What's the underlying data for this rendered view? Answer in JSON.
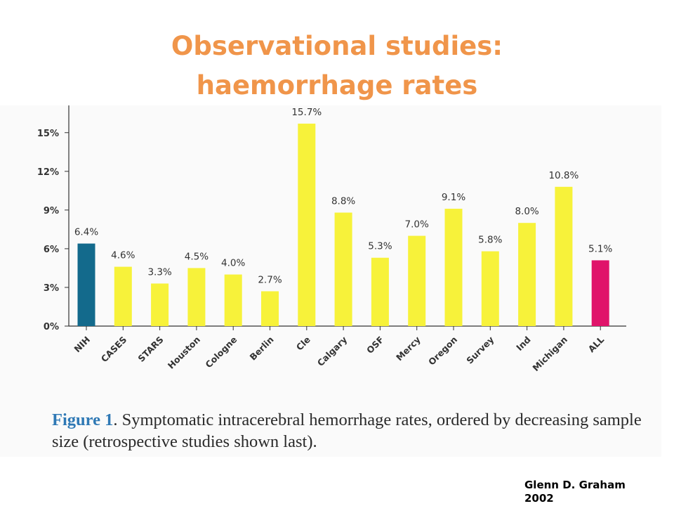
{
  "slide": {
    "title_line1": "Observational studies:",
    "title_line2": "haemorrhage rates"
  },
  "caption": {
    "label": "Figure 1",
    "text": ". Symptomatic intracerebral hemorrhage rates, ordered by decreasing sample size (retrospective studies shown last)."
  },
  "credit": {
    "line1": "Glenn D. Graham",
    "line2": "2002"
  },
  "colors": {
    "title": "#f0954a",
    "bar_default": "#f7f23a",
    "bar_nih": "#136a8c",
    "bar_all": "#e0136a",
    "caption_label": "#2f79b5"
  },
  "chart_data": {
    "type": "bar",
    "categories": [
      "NIH",
      "CASES",
      "STARS",
      "Houston",
      "Cologne",
      "Berlin",
      "Cle",
      "Calgary",
      "OSF",
      "Mercy",
      "Oregon",
      "Survey",
      "Ind",
      "Michigan",
      "ALL"
    ],
    "values": [
      6.4,
      4.6,
      3.3,
      4.5,
      4.0,
      2.7,
      15.7,
      8.8,
      5.3,
      7.0,
      9.1,
      5.8,
      8.0,
      10.8,
      5.1
    ],
    "data_labels": [
      "6.4%",
      "4.6%",
      "3.3%",
      "4.5%",
      "4.0%",
      "2.7%",
      "15.7%",
      "8.8%",
      "5.3%",
      "7.0%",
      "9.1%",
      "5.8%",
      "8.0%",
      "10.8%",
      "5.1%"
    ],
    "yticks": [
      0,
      3,
      6,
      9,
      12,
      15
    ],
    "ytick_labels": [
      "0%",
      "3%",
      "6%",
      "9%",
      "12%",
      "15%"
    ],
    "ylim": [
      0,
      16.5
    ],
    "bar_colors": [
      "#136a8c",
      "#f7f23a",
      "#f7f23a",
      "#f7f23a",
      "#f7f23a",
      "#f7f23a",
      "#f7f23a",
      "#f7f23a",
      "#f7f23a",
      "#f7f23a",
      "#f7f23a",
      "#f7f23a",
      "#f7f23a",
      "#f7f23a",
      "#e0136a"
    ],
    "title": "",
    "xlabel": "",
    "ylabel": "",
    "grid": false,
    "legend": "none"
  }
}
